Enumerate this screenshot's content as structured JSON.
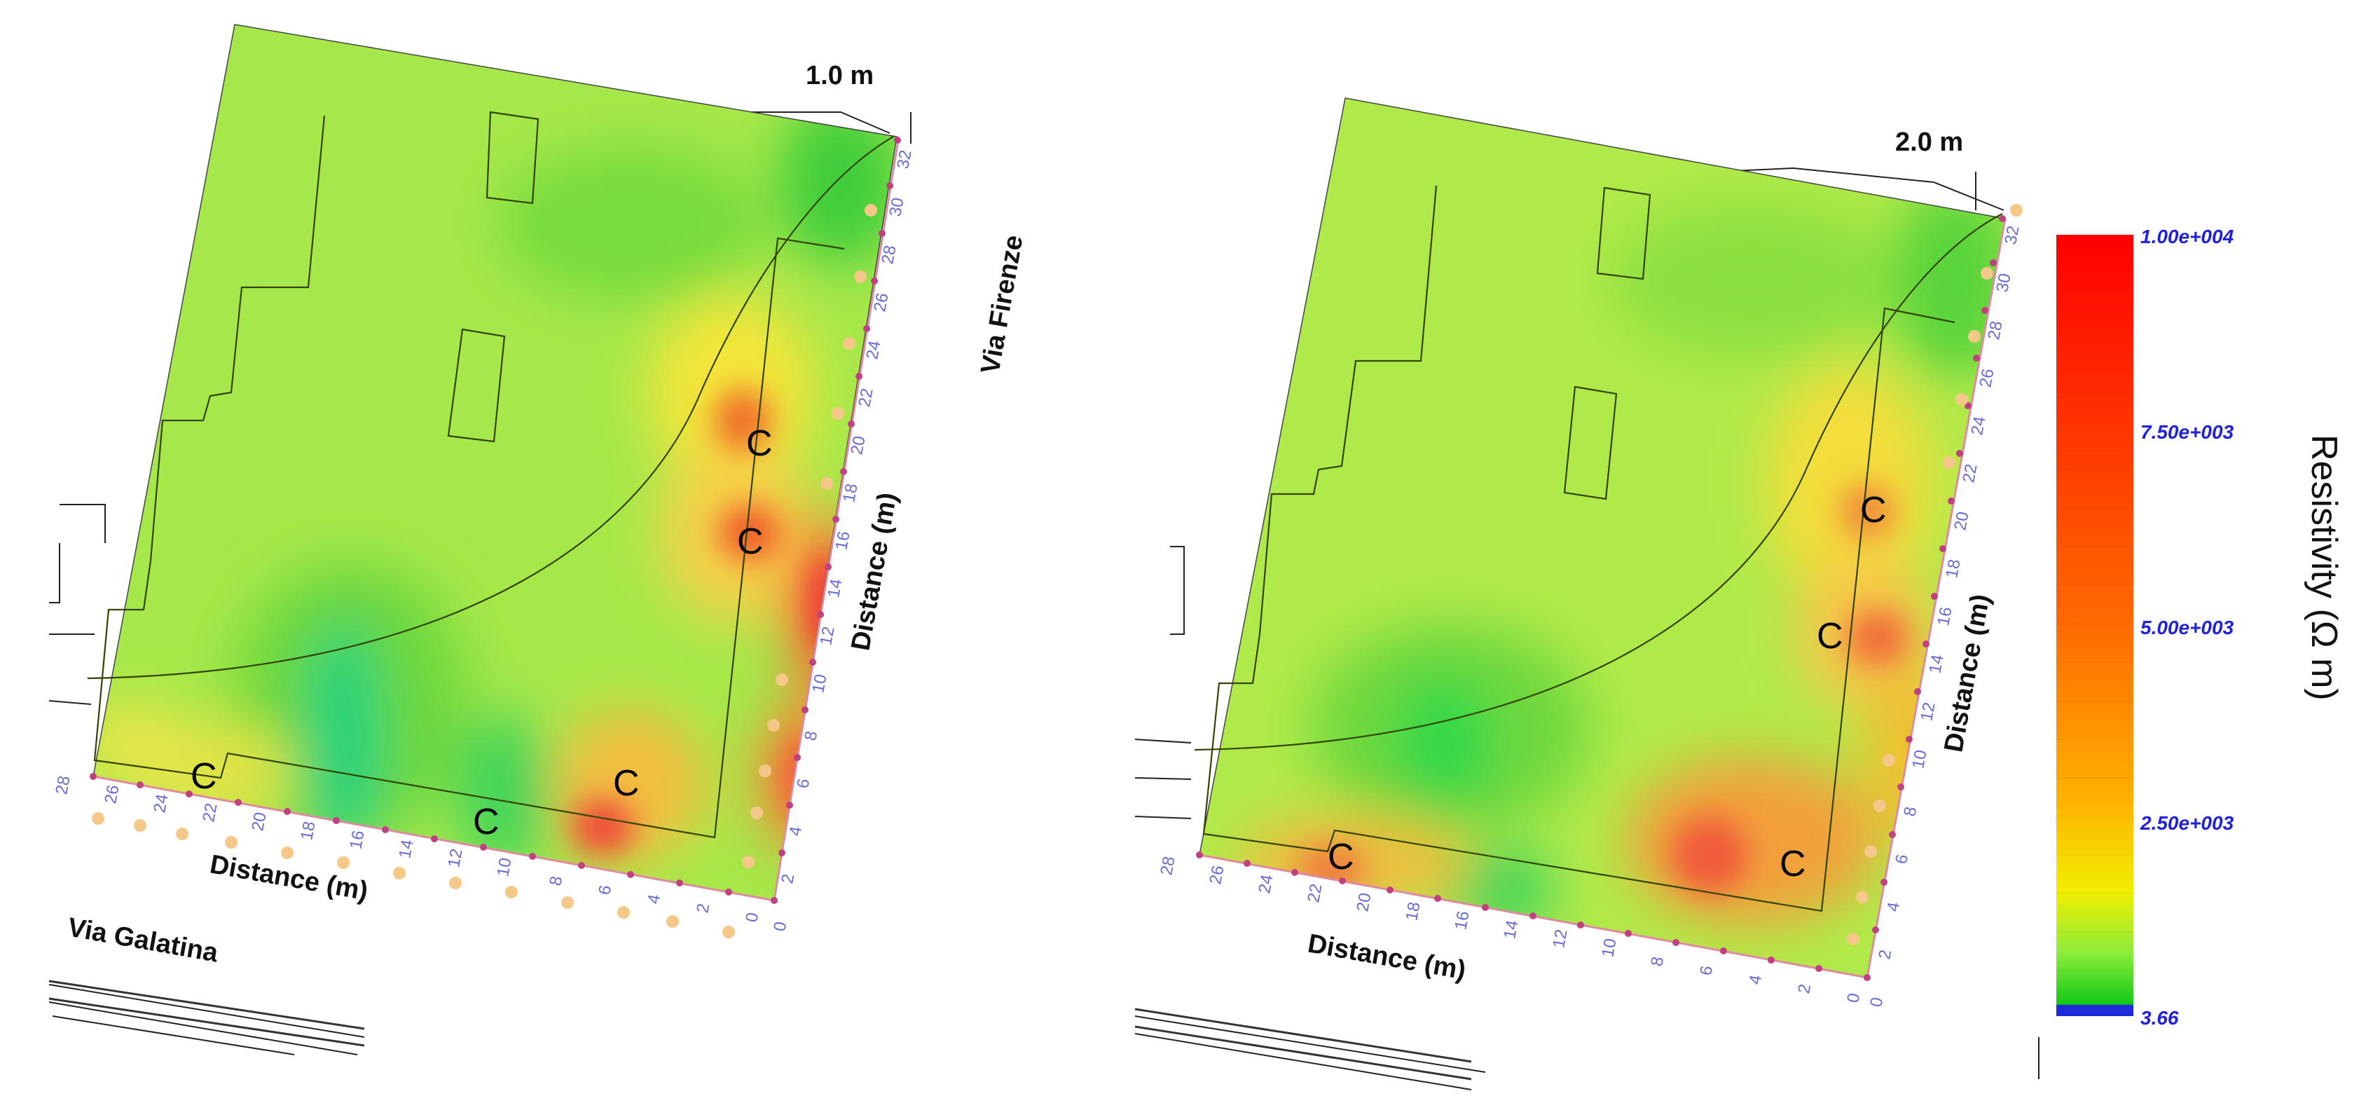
{
  "panels": [
    {
      "depth_label": "1.0 m",
      "bottom_axis_label": "Distance (m)",
      "right_axis_label": "Distance (m)",
      "bottom_ticks": [
        "28",
        "26",
        "24",
        "22",
        "20",
        "18",
        "16",
        "14",
        "12",
        "10",
        "8",
        "6",
        "4",
        "2",
        "0"
      ],
      "right_ticks": [
        "0",
        "2",
        "4",
        "6",
        "8",
        "10",
        "12",
        "14",
        "16",
        "18",
        "20",
        "22",
        "24",
        "26",
        "28",
        "30",
        "32"
      ],
      "zone_label": "C",
      "street_bottom": "Via Galatina",
      "street_right": "Via Firenze"
    },
    {
      "depth_label": "2.0 m",
      "bottom_axis_label": "Distance (m)",
      "right_axis_label": "Distance (m)",
      "bottom_ticks": [
        "28",
        "26",
        "24",
        "22",
        "20",
        "18",
        "16",
        "14",
        "12",
        "10",
        "8",
        "6",
        "4",
        "2",
        "0"
      ],
      "right_ticks": [
        "0",
        "2",
        "4",
        "6",
        "8",
        "10",
        "12",
        "14",
        "16",
        "18",
        "20",
        "22",
        "24",
        "26",
        "28",
        "30",
        "32"
      ],
      "zone_label": "C"
    }
  ],
  "colorbar": {
    "title": "Resistivity (Ω m)",
    "tick_labels": [
      "1.00e+004",
      "7.50e+003",
      "5.00e+003",
      "2.50e+003",
      "3.66"
    ],
    "max": 10000,
    "min": 3.66,
    "colors": [
      "#ff0000",
      "#ff2a00",
      "#ff4d00",
      "#ff6a00",
      "#ff8a00",
      "#ffa500",
      "#ffc400",
      "#ffe000",
      "#f4f000",
      "#c8f23a",
      "#7cec3a",
      "#2fdc2a",
      "#10c81a",
      "#1f2bd8"
    ]
  }
}
